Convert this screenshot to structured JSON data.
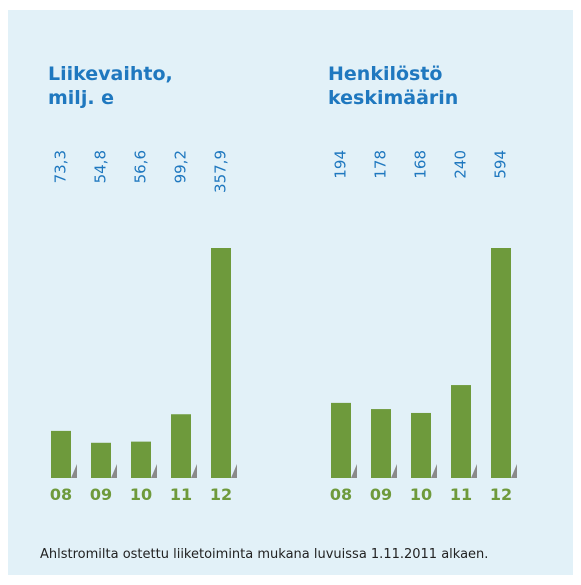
{
  "chart_data": [
    {
      "type": "bar",
      "title": [
        "Liikevaihto,",
        "milj. e"
      ],
      "categories": [
        "08",
        "09",
        "10",
        "11",
        "12"
      ],
      "values": [
        73.3,
        54.8,
        56.6,
        99.2,
        357.9
      ],
      "value_labels": [
        "73,3",
        "54,8",
        "56,6",
        "99,2",
        "357,9"
      ],
      "color": "#6e9a3c"
    },
    {
      "type": "bar",
      "title": [
        "Henkilöstö",
        "keskimäärin"
      ],
      "categories": [
        "08",
        "09",
        "10",
        "11",
        "12"
      ],
      "values": [
        194,
        178,
        168,
        240,
        594
      ],
      "color": "#6e9a3c"
    }
  ],
  "footnote": "Ahlstromilta ostettu liiketoiminta mukana luvuissa 1.11.2011 alkaen."
}
